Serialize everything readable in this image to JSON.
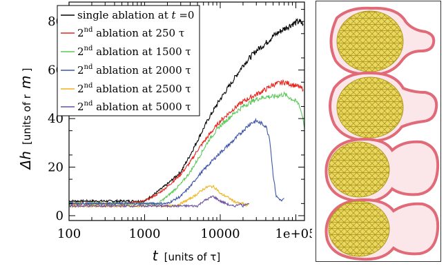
{
  "chart_data": {
    "type": "line",
    "x_scale": "log",
    "xlim": [
      100,
      130000
    ],
    "ylim": [
      -2,
      88
    ],
    "xticks": [
      100,
      1000,
      10000,
      100000
    ],
    "xtick_labels": [
      "100",
      "1000",
      "10000",
      "1e+05"
    ],
    "yticks": [
      0,
      20,
      40,
      60,
      80
    ],
    "ytick_labels": [
      "0",
      "20",
      "40",
      "60",
      "80"
    ],
    "xlabel": {
      "symbol": "t",
      "unit": "[units of τ]"
    },
    "ylabel": {
      "symbol": "Δh",
      "unit": "[units of r",
      "unit_sub": "m",
      "unit_end": "]"
    },
    "legend_position": "top-left",
    "series": [
      {
        "name_pre": "single ablation at ",
        "name_sym": "t",
        "name_post": " =0",
        "color": "#000000",
        "x": [
          100,
          500,
          700,
          1000,
          1500,
          2000,
          3000,
          4000,
          5000,
          7000,
          10000,
          15000,
          20000,
          30000,
          40000,
          50000,
          70000,
          90000,
          110000,
          125000
        ],
        "y": [
          6,
          6,
          6,
          6,
          10,
          13,
          18,
          25,
          31,
          40,
          48,
          56,
          62,
          68,
          71,
          74,
          77,
          79,
          80,
          79
        ]
      },
      {
        "name_pre": "2",
        "name_sup": "nd",
        "name_post": " ablation at 250 τ",
        "color": "#e8251f",
        "x": [
          100,
          250,
          500,
          1000,
          1500,
          2000,
          3000,
          4000,
          5000,
          7000,
          10000,
          15000,
          20000,
          30000,
          40000,
          50000,
          70000,
          90000,
          110000,
          125000
        ],
        "y": [
          5,
          5,
          5,
          6,
          9,
          12,
          17,
          22,
          27,
          33,
          39,
          44,
          47,
          50,
          52,
          54,
          55,
          54,
          53,
          52
        ]
      },
      {
        "name_pre": "2",
        "name_sup": "nd",
        "name_post": " ablation at 1500 τ",
        "color": "#5cc85a",
        "x": [
          100,
          1000,
          1500,
          2000,
          3000,
          4000,
          5000,
          7000,
          10000,
          15000,
          20000,
          30000,
          40000,
          50000,
          70000,
          90000,
          110000,
          125000,
          130000
        ],
        "y": [
          5,
          5,
          5,
          8,
          13,
          18,
          23,
          31,
          37,
          42,
          45,
          48,
          49,
          49,
          50,
          48,
          46,
          40,
          36
        ]
      },
      {
        "name_pre": "2",
        "name_sup": "nd",
        "name_post": " ablation at 2000 τ",
        "color": "#3f55a8",
        "x": [
          100,
          1000,
          2000,
          3000,
          4000,
          5000,
          7000,
          10000,
          15000,
          20000,
          25000,
          30000,
          40000,
          45000,
          50000,
          55000,
          60000,
          65000,
          70000
        ],
        "y": [
          5,
          5,
          5,
          8,
          12,
          16,
          21,
          26,
          31,
          35,
          38,
          39,
          37,
          32,
          17,
          8,
          7,
          6,
          7
        ]
      },
      {
        "name_pre": "2",
        "name_sup": "nd",
        "name_post": " ablation at 2500 τ",
        "color": "#f0b21d",
        "x": [
          100,
          1000,
          2000,
          2500,
          3000,
          4000,
          5000,
          6000,
          7000,
          8000,
          9000,
          10000,
          12000,
          15000,
          18000,
          20000,
          22000,
          24000
        ],
        "y": [
          4,
          4,
          4,
          4,
          5,
          7,
          9,
          11,
          12,
          12,
          11,
          9,
          8,
          6,
          5,
          5,
          4,
          5
        ]
      },
      {
        "name_pre": "2",
        "name_sup": "nd",
        "name_post": " ablation at 5000 τ",
        "color": "#6a4fa0",
        "x": [
          100,
          1000,
          3000,
          5000,
          6000,
          7000,
          8000,
          9000,
          10000,
          12000,
          14000,
          16000,
          18000,
          20000,
          22000,
          24000
        ],
        "y": [
          4,
          4,
          4,
          4,
          6,
          7,
          8,
          7,
          6,
          5,
          4,
          4,
          5,
          4,
          5,
          5
        ]
      }
    ]
  },
  "panel": {
    "figures": [
      "vesicle-1",
      "vesicle-2",
      "vesicle-3",
      "vesicle-4"
    ],
    "colors": {
      "membrane": "#e06070",
      "network": "#b8a020",
      "fill": "#e6d55a"
    }
  }
}
